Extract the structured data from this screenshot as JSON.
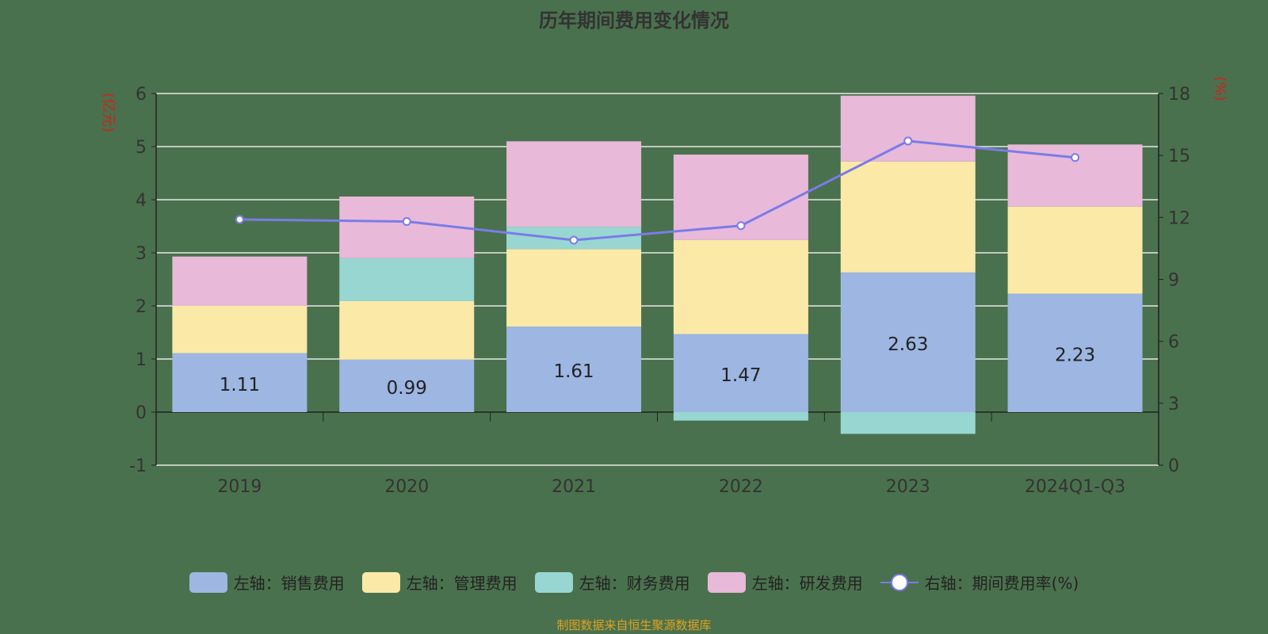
{
  "chart_data": {
    "type": "bar",
    "stacked": true,
    "title": "历年期间费用变化情况",
    "categories": [
      "2019",
      "2020",
      "2021",
      "2022",
      "2023",
      "2024Q1-Q3"
    ],
    "left_axis": {
      "label": "(亿元)",
      "ylim": [
        -1,
        6
      ],
      "ticks": [
        "-1",
        "0",
        "1",
        "2",
        "3",
        "4",
        "5",
        "6"
      ]
    },
    "right_axis": {
      "label": "(%)",
      "ylim": [
        0,
        18
      ],
      "ticks": [
        "0",
        "3",
        "6",
        "9",
        "12",
        "15",
        "18"
      ]
    },
    "grid": true,
    "legend_position": "bottom",
    "series": [
      {
        "name": "左轴：销售费用",
        "axis": "left",
        "type": "bar",
        "color": "#9db6e2",
        "values": [
          1.11,
          0.99,
          1.61,
          1.47,
          2.63,
          2.23
        ],
        "labels": [
          "1.11",
          "0.99",
          "1.61",
          "1.47",
          "2.63",
          "2.23"
        ]
      },
      {
        "name": "左轴：管理费用",
        "axis": "left",
        "type": "bar",
        "color": "#fbe9a8",
        "values": [
          0.89,
          1.1,
          1.46,
          1.77,
          2.09,
          1.64
        ]
      },
      {
        "name": "左轴：财务费用",
        "axis": "left",
        "type": "bar",
        "color": "#98d6d2",
        "values": [
          0.0,
          0.81,
          0.42,
          -0.16,
          -0.41,
          0.0
        ]
      },
      {
        "name": "左轴：研发费用",
        "axis": "left",
        "type": "bar",
        "color": "#e8b9d8",
        "values": [
          0.93,
          1.16,
          1.61,
          1.61,
          1.24,
          1.17
        ]
      },
      {
        "name": "右轴：期间费用率(%)",
        "axis": "right",
        "type": "line",
        "color": "#7b7be8",
        "values": [
          11.9,
          11.8,
          10.9,
          11.6,
          15.7,
          14.9
        ]
      }
    ]
  },
  "footer": "制图数据来自恒生聚源数据库"
}
